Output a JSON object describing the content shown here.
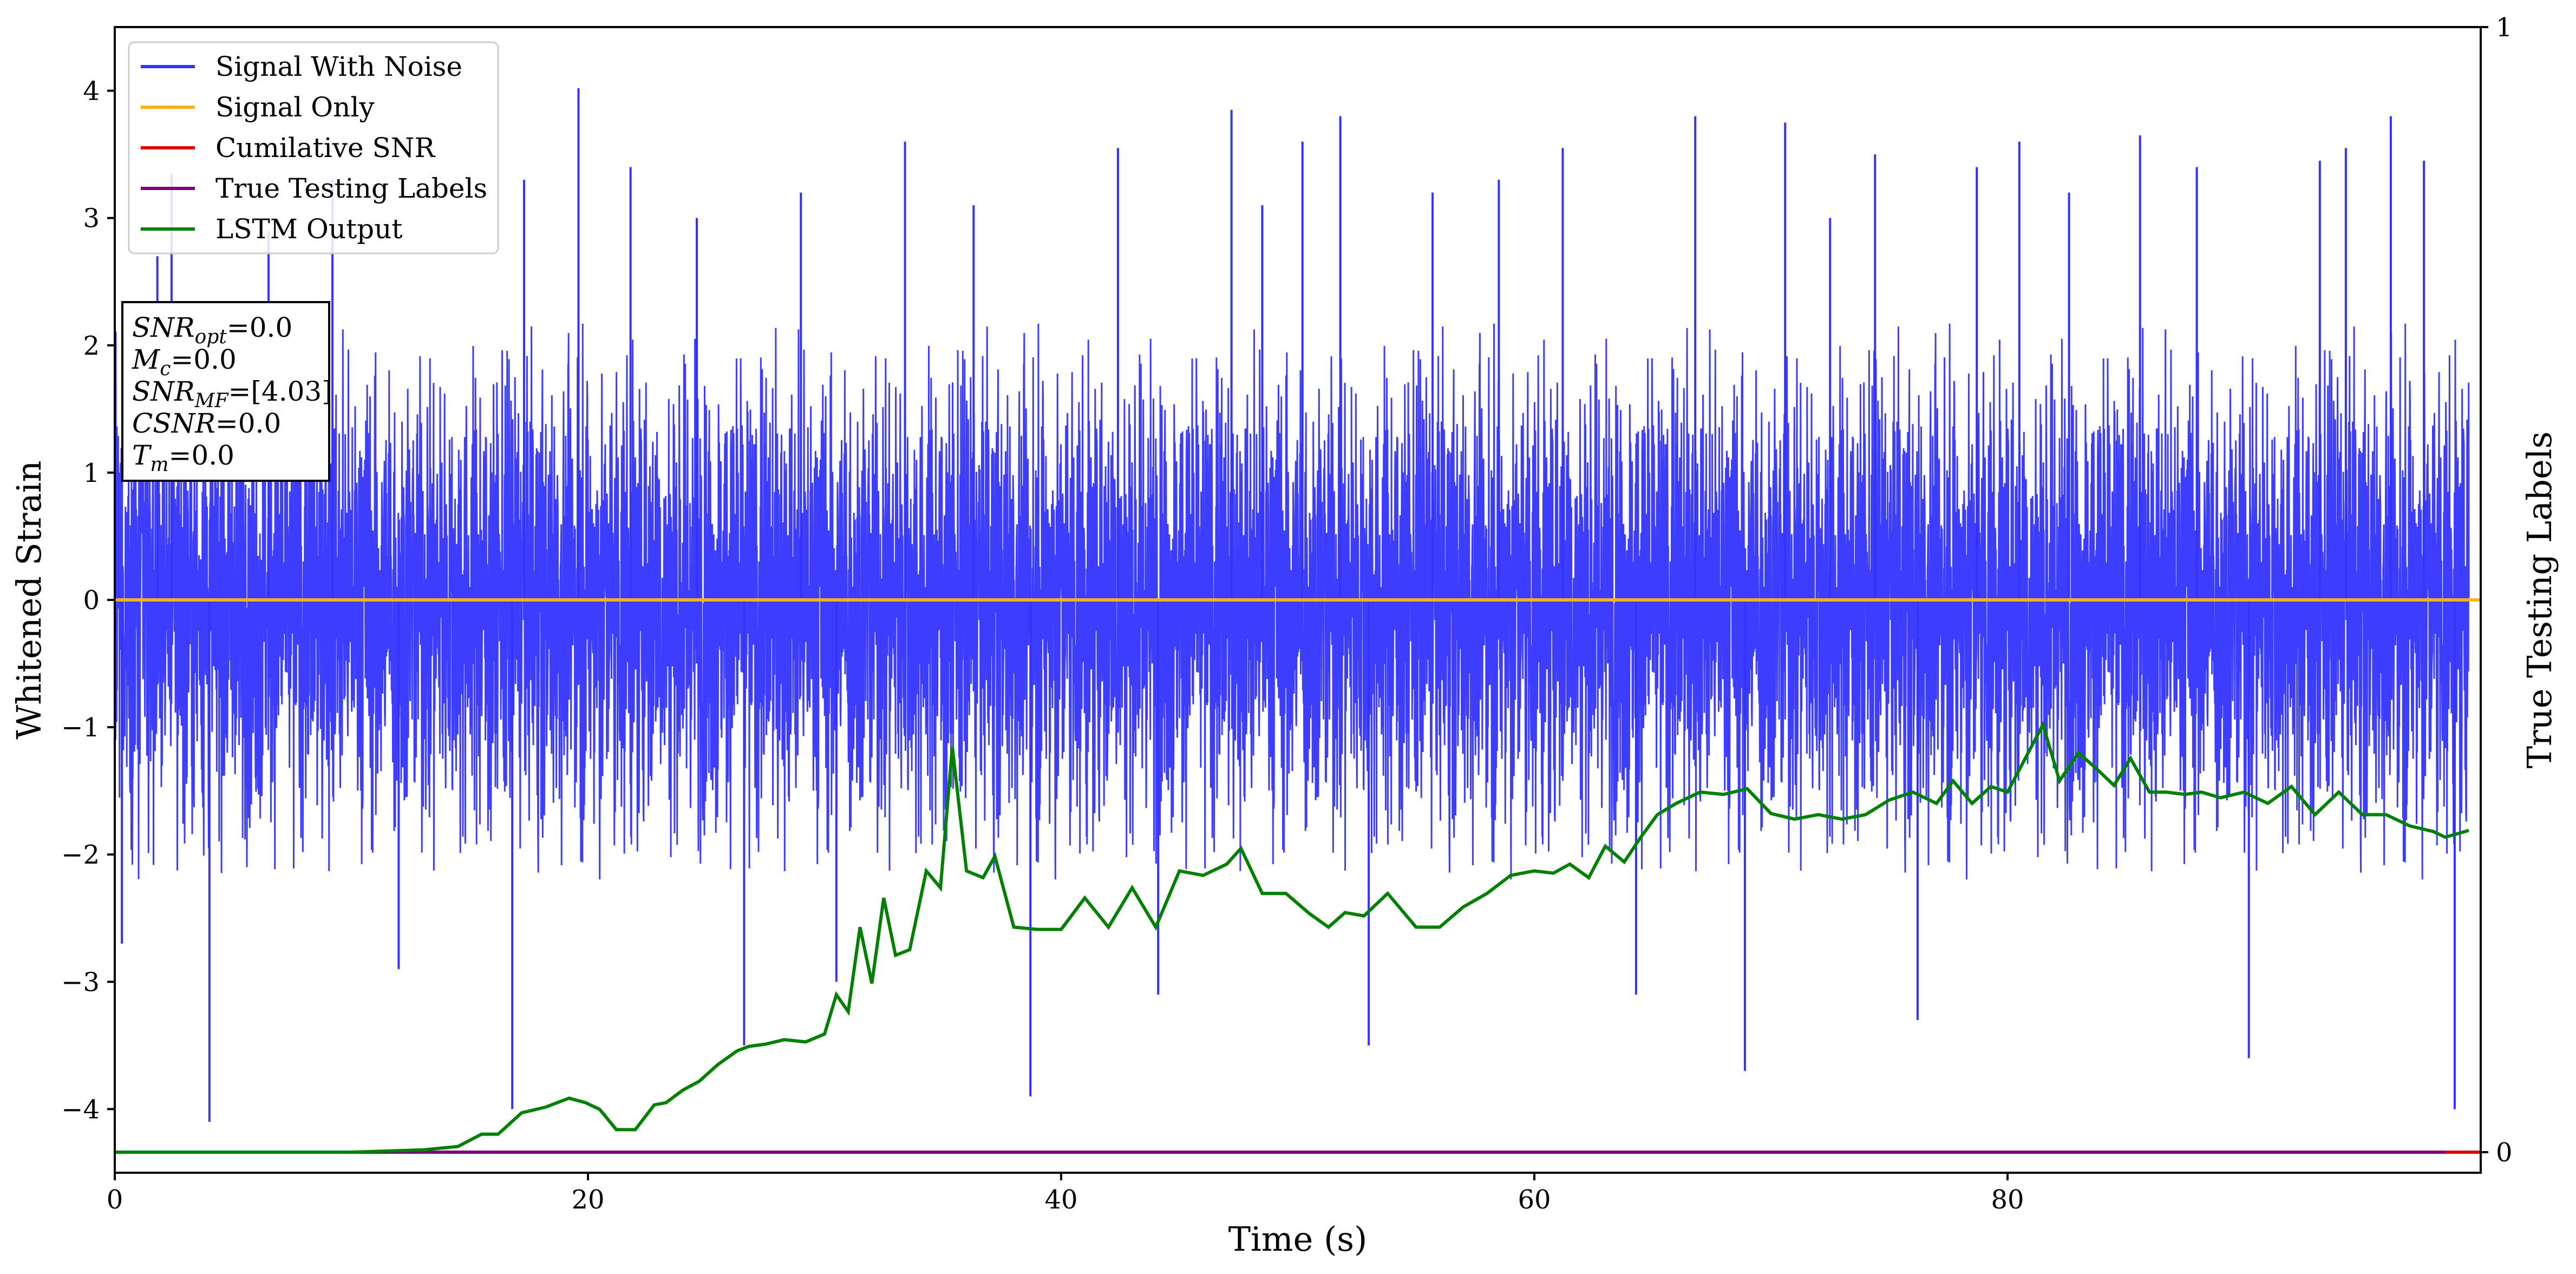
{
  "chart_data": {
    "type": "line",
    "title": "",
    "xlabel": "Time (s)",
    "ylabel": "Whitened Strain",
    "y2label": "True Testing Labels",
    "xlim": [
      0,
      100
    ],
    "ylim": [
      -4.5,
      4.5
    ],
    "y2lim": [
      0,
      1
    ],
    "x_ticks": [
      0,
      20,
      40,
      60,
      80
    ],
    "y_ticks": [
      -4,
      -3,
      -2,
      -1,
      0,
      1,
      2,
      3,
      4
    ],
    "y2_ticks": [
      0,
      1
    ],
    "grid": false,
    "legend_position": "top-left",
    "series": [
      {
        "name": "Signal With Noise",
        "color": "#3333ff",
        "axis": "left",
        "noise_band": {
          "typical_high": 2.1,
          "typical_low": -2.1
        },
        "extremes": [
          [
            0.3,
            -2.7
          ],
          [
            1.8,
            2.7
          ],
          [
            2.4,
            3.35
          ],
          [
            4.0,
            -4.1
          ],
          [
            6.5,
            2.9
          ],
          [
            9.2,
            3.3
          ],
          [
            12.0,
            -2.9
          ],
          [
            16.8,
            -4.0
          ],
          [
            17.3,
            3.3
          ],
          [
            19.6,
            4.02
          ],
          [
            21.8,
            3.4
          ],
          [
            24.6,
            3.0
          ],
          [
            26.6,
            -3.5
          ],
          [
            29.0,
            3.2
          ],
          [
            30.5,
            -3.0
          ],
          [
            33.4,
            3.6
          ],
          [
            36.3,
            3.1
          ],
          [
            38.7,
            -3.9
          ],
          [
            42.4,
            3.55
          ],
          [
            44.1,
            -3.1
          ],
          [
            47.2,
            3.85
          ],
          [
            48.5,
            3.1
          ],
          [
            50.2,
            3.6
          ],
          [
            51.8,
            3.8
          ],
          [
            53.0,
            -3.5
          ],
          [
            55.7,
            3.2
          ],
          [
            58.5,
            3.3
          ],
          [
            61.2,
            3.55
          ],
          [
            64.3,
            -3.1
          ],
          [
            66.8,
            3.8
          ],
          [
            68.9,
            -3.7
          ],
          [
            70.6,
            3.75
          ],
          [
            72.5,
            3.0
          ],
          [
            74.4,
            3.5
          ],
          [
            76.2,
            -3.3
          ],
          [
            78.7,
            3.4
          ],
          [
            80.5,
            3.6
          ],
          [
            82.6,
            3.2
          ],
          [
            85.6,
            3.65
          ],
          [
            88.0,
            3.4
          ],
          [
            90.2,
            -3.6
          ],
          [
            93.2,
            3.45
          ],
          [
            94.3,
            3.55
          ],
          [
            96.2,
            3.8
          ],
          [
            97.6,
            3.45
          ],
          [
            98.9,
            -4.0
          ]
        ]
      },
      {
        "name": "Signal Only",
        "color": "#ffb020",
        "axis": "left",
        "x": [
          0,
          100
        ],
        "y": [
          0,
          0
        ]
      },
      {
        "name": "Cumilative SNR",
        "color": "#e00000",
        "axis": "right",
        "x": [
          0,
          100
        ],
        "y": [
          0,
          0
        ]
      },
      {
        "name": "True Testing Labels",
        "color": "#800080",
        "axis": "right",
        "x": [
          0,
          98.5
        ],
        "y": [
          0,
          0
        ]
      },
      {
        "name": "LSTM Output",
        "color": "#008000",
        "axis": "right",
        "x": [
          0,
          10,
          13,
          14.5,
          15.5,
          16.2,
          17.2,
          18.2,
          19.2,
          19.9,
          20.5,
          21.2,
          22.0,
          22.8,
          23.3,
          24.0,
          24.7,
          25.5,
          26.3,
          26.8,
          27.5,
          28.3,
          29.2,
          30.0,
          30.5,
          31.0,
          31.5,
          32.0,
          32.5,
          33.0,
          33.6,
          34.3,
          34.9,
          35.4,
          36.0,
          36.7,
          37.2,
          38.0,
          39.0,
          40.0,
          41.0,
          42.0,
          43.0,
          44.0,
          45.0,
          46.0,
          47.0,
          47.6,
          48.5,
          49.5,
          50.5,
          51.3,
          52.0,
          52.8,
          53.8,
          55.0,
          56.0,
          57.0,
          58.0,
          59.0,
          60.0,
          60.8,
          61.5,
          62.3,
          63.0,
          63.8,
          64.5,
          65.2,
          66.0,
          67.0,
          68.0,
          69.0,
          70.0,
          71.0,
          72.0,
          73.0,
          74.0,
          75.0,
          76.0,
          77.0,
          77.7,
          78.5,
          79.3,
          80.0,
          81.0,
          81.5,
          82.2,
          83.0,
          83.8,
          84.5,
          85.2,
          86.0,
          86.7,
          87.5,
          88.2,
          89.0,
          90.0,
          91.0,
          92.0,
          93.0,
          94.0,
          95.0,
          96.0,
          97.0,
          98.0,
          98.5,
          99.5
        ],
        "y": [
          0.0,
          0.0,
          0.002,
          0.005,
          0.016,
          0.016,
          0.035,
          0.04,
          0.048,
          0.044,
          0.038,
          0.02,
          0.02,
          0.042,
          0.044,
          0.055,
          0.063,
          0.078,
          0.09,
          0.094,
          0.096,
          0.1,
          0.098,
          0.105,
          0.14,
          0.125,
          0.2,
          0.15,
          0.226,
          0.175,
          0.18,
          0.25,
          0.235,
          0.36,
          0.25,
          0.244,
          0.263,
          0.2,
          0.198,
          0.198,
          0.226,
          0.2,
          0.235,
          0.2,
          0.25,
          0.246,
          0.256,
          0.27,
          0.23,
          0.23,
          0.212,
          0.2,
          0.213,
          0.21,
          0.23,
          0.2,
          0.2,
          0.218,
          0.23,
          0.246,
          0.25,
          0.248,
          0.256,
          0.244,
          0.272,
          0.258,
          0.28,
          0.3,
          0.31,
          0.32,
          0.318,
          0.323,
          0.301,
          0.296,
          0.3,
          0.296,
          0.3,
          0.313,
          0.32,
          0.31,
          0.33,
          0.31,
          0.325,
          0.32,
          0.36,
          0.38,
          0.33,
          0.355,
          0.34,
          0.326,
          0.35,
          0.32,
          0.32,
          0.318,
          0.32,
          0.315,
          0.32,
          0.31,
          0.325,
          0.3,
          0.32,
          0.3,
          0.3,
          0.29,
          0.285,
          0.28,
          0.286
        ]
      }
    ],
    "info_box": {
      "lines": [
        {
          "main": "SNR",
          "sub": "opt",
          "value": "=0.0"
        },
        {
          "main": "M",
          "sub": "c",
          "value": "=0.0"
        },
        {
          "main": "SNR",
          "sub": "MF",
          "value": "=[4.03]"
        },
        {
          "main": "CSNR",
          "sub": "",
          "value": "=0.0"
        },
        {
          "main": "T",
          "sub": "m",
          "value": "=0.0"
        }
      ]
    }
  }
}
